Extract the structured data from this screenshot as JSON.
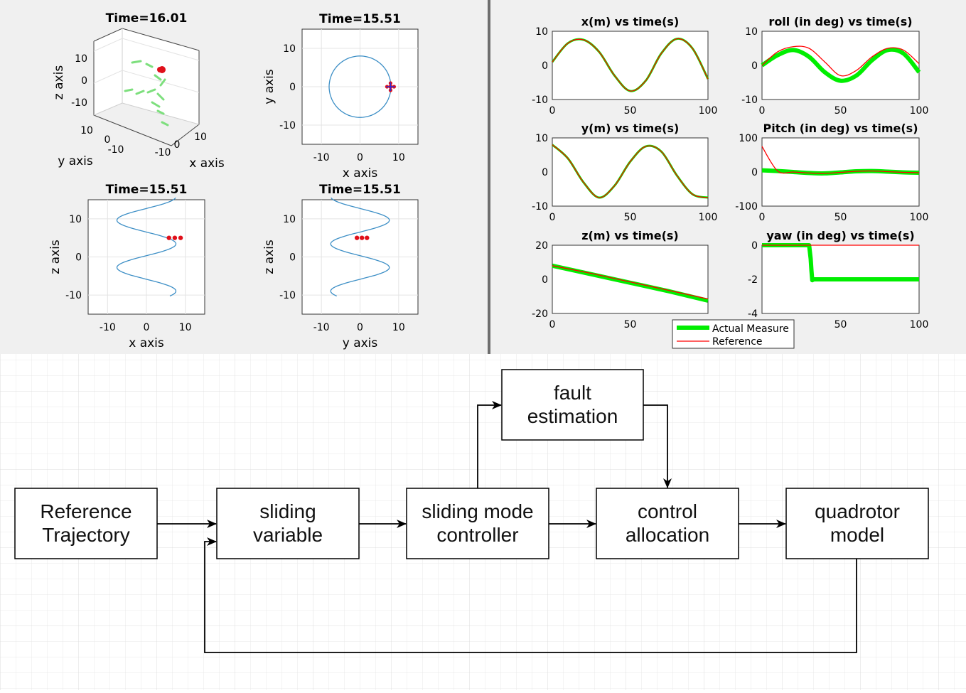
{
  "colors": {
    "panel_bg": "#f0f0f0",
    "grid_bg": "#ffffff",
    "grid_line": "#e6e6e6",
    "traj": "#3d8fc6",
    "marker_red": "#e0101a",
    "marker_blue": "#2a2ad8",
    "actual": "#00ee00",
    "reference": "#ff0000",
    "block_stroke": "#000000"
  },
  "left_panel": {
    "plots": [
      {
        "id": "p3d",
        "title": "Time=16.01",
        "xlabel": "x axis",
        "ylabel": "y axis",
        "zlabel": "z axis",
        "ticks": {
          "z": [
            "10",
            "0",
            "-10"
          ],
          "y": [
            "10",
            "0",
            "-10"
          ],
          "x": [
            "-10",
            "0",
            "10"
          ]
        }
      },
      {
        "id": "pxy",
        "title": "Time=15.51",
        "xlabel": "x axis",
        "ylabel": "y axis",
        "xticks": [
          "-10",
          "0",
          "10"
        ],
        "yticks": [
          "10",
          "0",
          "-10"
        ],
        "xlim": [
          -15,
          15
        ],
        "ylim": [
          -15,
          15
        ]
      },
      {
        "id": "pxz",
        "title": "Time=15.51",
        "xlabel": "x axis",
        "ylabel": "z axis",
        "xticks": [
          "-10",
          "0",
          "10"
        ],
        "yticks": [
          "10",
          "0",
          "-10"
        ],
        "xlim": [
          -15,
          15
        ],
        "ylim": [
          -15,
          15
        ]
      },
      {
        "id": "pyz",
        "title": "Time=15.51",
        "xlabel": "y axis",
        "ylabel": "z axis",
        "xticks": [
          "-10",
          "0",
          "10"
        ],
        "yticks": [
          "10",
          "0",
          "-10"
        ],
        "xlim": [
          -15,
          15
        ],
        "ylim": [
          -15,
          15
        ]
      }
    ]
  },
  "chart_data": [
    {
      "type": "line",
      "title": "x(m) vs time(s)",
      "xlim": [
        0,
        100
      ],
      "ylim": [
        -10,
        10
      ],
      "xticks": [
        0,
        50,
        100
      ],
      "yticks": [
        10,
        0,
        -10
      ],
      "x": [
        0,
        10,
        20,
        30,
        40,
        50,
        60,
        70,
        80,
        90,
        100
      ],
      "series": [
        {
          "name": "Actual Measure",
          "values": [
            1,
            6.5,
            7.5,
            4,
            -3,
            -7.5,
            -4.5,
            3.5,
            7.8,
            5,
            -4
          ]
        },
        {
          "name": "Reference",
          "values": [
            1,
            6.5,
            7.5,
            4,
            -3,
            -7.5,
            -4.5,
            3.5,
            7.8,
            5,
            -4
          ]
        }
      ]
    },
    {
      "type": "line",
      "title": "roll (in deg) vs time(s)",
      "xlim": [
        0,
        100
      ],
      "ylim": [
        -10,
        10
      ],
      "xticks": [
        0,
        50,
        100
      ],
      "yticks": [
        10,
        0,
        -10
      ],
      "x": [
        0,
        10,
        20,
        30,
        40,
        50,
        60,
        70,
        80,
        90,
        100
      ],
      "series": [
        {
          "name": "Actual Measure",
          "values": [
            0,
            3,
            4.5,
            2.5,
            -2,
            -4.5,
            -3,
            1.5,
            4.5,
            3.5,
            -2
          ]
        },
        {
          "name": "Reference",
          "values": [
            0,
            4,
            5.5,
            5,
            1,
            -3,
            -1.5,
            2.5,
            5,
            4.5,
            0.5
          ]
        }
      ]
    },
    {
      "type": "line",
      "title": "y(m) vs time(s)",
      "xlim": [
        0,
        100
      ],
      "ylim": [
        -10,
        10
      ],
      "xticks": [
        0,
        50,
        100
      ],
      "yticks": [
        10,
        0,
        -10
      ],
      "x": [
        0,
        10,
        20,
        30,
        40,
        50,
        60,
        70,
        80,
        90,
        100
      ],
      "series": [
        {
          "name": "Actual Measure",
          "values": [
            8,
            4,
            -3,
            -7.5,
            -4,
            3,
            7.5,
            6,
            -1,
            -6.5,
            -7.5
          ]
        },
        {
          "name": "Reference",
          "values": [
            8,
            4,
            -3,
            -7.5,
            -4,
            3,
            7.5,
            6,
            -1,
            -6.5,
            -7.5
          ]
        }
      ]
    },
    {
      "type": "line",
      "title": "Pitch (in deg) vs time(s)",
      "xlim": [
        0,
        100
      ],
      "ylim": [
        -100,
        100
      ],
      "xticks": [
        0,
        50,
        100
      ],
      "yticks": [
        100,
        0,
        -100
      ],
      "x": [
        0,
        10,
        20,
        30,
        40,
        50,
        60,
        70,
        80,
        90,
        100
      ],
      "series": [
        {
          "name": "Actual Measure",
          "values": [
            5,
            3,
            0,
            -3,
            -4,
            -1,
            2,
            3,
            1,
            -1,
            -2
          ]
        },
        {
          "name": "Reference",
          "values": [
            75,
            3,
            0,
            -3,
            -4,
            -1,
            2,
            3,
            1,
            -1,
            -2
          ]
        }
      ]
    },
    {
      "type": "line",
      "title": "z(m) vs time(s)",
      "xlim": [
        0,
        100
      ],
      "ylim": [
        -20,
        20
      ],
      "xticks": [
        0,
        50
      ],
      "yticks": [
        20,
        0,
        -20
      ],
      "x": [
        0,
        25,
        50,
        75,
        100
      ],
      "series": [
        {
          "name": "Actual Measure",
          "values": [
            8,
            3,
            -2,
            -7,
            -12.5
          ]
        },
        {
          "name": "Reference",
          "values": [
            8,
            3.5,
            -1.5,
            -6.5,
            -11.5
          ]
        }
      ]
    },
    {
      "type": "line",
      "title": "yaw (in deg) vs time(s)",
      "xlim": [
        0,
        100
      ],
      "ylim": [
        -4,
        0
      ],
      "xticks": [
        50,
        100
      ],
      "yticks": [
        0,
        -2,
        -4
      ],
      "x": [
        0,
        30,
        31,
        31.5,
        32,
        33,
        40,
        60,
        80,
        100
      ],
      "series": [
        {
          "name": "Actual Measure",
          "values": [
            0,
            0,
            -0.8,
            -1.5,
            -2.05,
            -2,
            -2,
            -2,
            -2,
            -2
          ]
        },
        {
          "name": "Reference",
          "values": [
            0,
            0,
            0,
            0,
            0,
            0,
            0,
            0,
            0,
            0
          ]
        }
      ]
    }
  ],
  "legend": {
    "items": [
      {
        "label": "Actual Measure"
      },
      {
        "label": "Reference"
      }
    ],
    "placement": "bottom-center"
  },
  "diagram": {
    "blocks": [
      {
        "id": "ref",
        "lines": [
          "Reference",
          "Trajectory"
        ]
      },
      {
        "id": "slv",
        "lines": [
          "sliding",
          "variable"
        ]
      },
      {
        "id": "smc",
        "lines": [
          "sliding mode",
          "controller"
        ]
      },
      {
        "id": "cal",
        "lines": [
          "control",
          "allocation"
        ]
      },
      {
        "id": "quad",
        "lines": [
          "quadrotor",
          "model"
        ]
      },
      {
        "id": "fest",
        "lines": [
          "fault",
          "estimation"
        ]
      }
    ]
  }
}
